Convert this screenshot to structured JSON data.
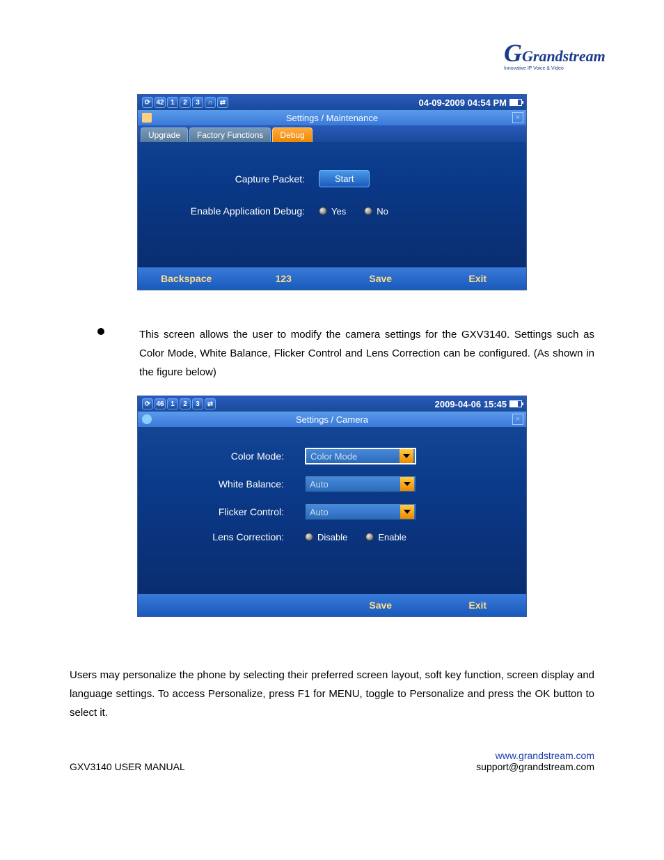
{
  "logo": {
    "brand": "Grandstream",
    "tagline": "Innovative IP Voice & Video"
  },
  "screenshot1": {
    "status_icons": [
      "⟳",
      "42",
      "1",
      "2",
      "3",
      "∩",
      "⇄"
    ],
    "datetime": "04-09-2009 04:54 PM",
    "title": "Settings / Maintenance",
    "tabs": [
      "Upgrade",
      "Factory Functions",
      "Debug"
    ],
    "active_tab_index": 2,
    "rows": {
      "capture_label": "Capture Packet:",
      "capture_button": "Start",
      "debug_label": "Enable Application Debug:",
      "radio_yes": "Yes",
      "radio_no": "No"
    },
    "footer": [
      "Backspace",
      "123",
      "Save",
      "Exit"
    ]
  },
  "body_text_1": "This screen allows the user to modify the camera settings for the GXV3140. Settings such as Color Mode, White Balance, Flicker Control and Lens Correction can be configured. (As shown in the figure below)",
  "screenshot2": {
    "status_icons": [
      "⟳",
      "46",
      "1",
      "2",
      "3",
      "⇄"
    ],
    "datetime": "2009-04-06 15:45",
    "title": "Settings / Camera",
    "rows": [
      {
        "label": "Color Mode:",
        "value": "Color Mode",
        "highlight": true
      },
      {
        "label": "White Balance:",
        "value": "Auto",
        "highlight": false
      },
      {
        "label": "Flicker Control:",
        "value": "Auto",
        "highlight": false
      }
    ],
    "lens_label": "Lens Correction:",
    "lens_disable": "Disable",
    "lens_enable": "Enable",
    "footer": [
      "Save",
      "Exit"
    ]
  },
  "body_text_2": "Users may personalize the phone by selecting their preferred screen layout, soft key function, screen display and language settings. To access Personalize, press F1 for MENU, toggle to Personalize and press the OK button to select it.",
  "page_footer": {
    "left": "GXV3140 USER MANUAL",
    "url": "www.grandstream.com",
    "email": "support@grandstream.com"
  }
}
